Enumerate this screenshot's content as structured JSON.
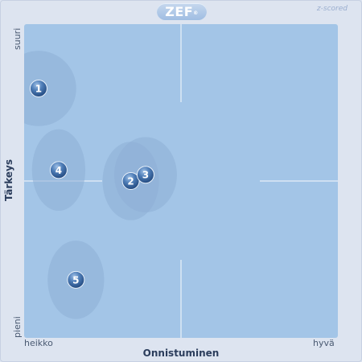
{
  "header": {
    "logo_text": "ZEF",
    "logo_mark": "®",
    "mode_label": "z-scored"
  },
  "chart_data": {
    "type": "scatter",
    "title": "",
    "xlabel": "Onnistuminen",
    "ylabel": "Tärkeys",
    "x_low_label": "heikko",
    "x_high_label": "hyvä",
    "y_low_label": "pieni",
    "y_high_label": "suuri",
    "xlim": [
      0,
      100
    ],
    "ylim": [
      0,
      100
    ],
    "grid": true,
    "points": [
      {
        "label": "1",
        "x": 4.6,
        "y": 79.5,
        "sx": 12,
        "sy": 12
      },
      {
        "label": "2",
        "x": 34,
        "y": 50,
        "sx": 9,
        "sy": 12.5
      },
      {
        "label": "3",
        "x": 38.7,
        "y": 52,
        "sx": 10,
        "sy": 12
      },
      {
        "label": "4",
        "x": 11,
        "y": 53.5,
        "sx": 8.5,
        "sy": 13
      },
      {
        "label": "5",
        "x": 16.5,
        "y": 18.5,
        "sx": 9,
        "sy": 12.5
      }
    ],
    "colors": {
      "plot_bg": "#a3c5e7",
      "ellipse": "#8eaed6",
      "marker": "#3d6aa3",
      "grid": "#dce8f5"
    }
  }
}
